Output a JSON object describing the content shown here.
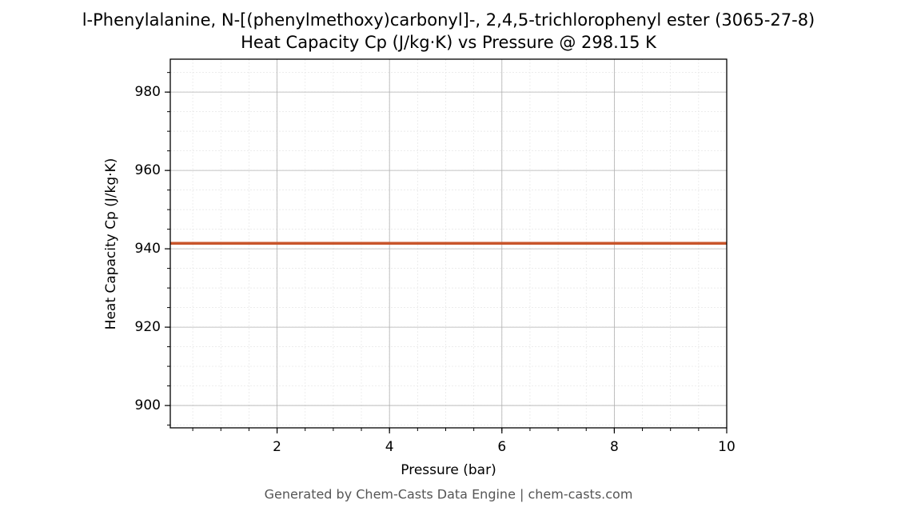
{
  "chart_data": {
    "type": "line",
    "title": "l-Phenylalanine, N-[(phenylmethoxy)carbonyl]-, 2,4,5-trichlorophenyl ester (3065-27-8)",
    "subtitle": "Heat Capacity Cp (J/kg·K) vs Pressure @ 298.15 K",
    "x_label": "Pressure (bar)",
    "y_label": "Heat Capacity Cp (J/kg·K)",
    "footer": "Generated by Chem-Casts Data Engine | chem-casts.com",
    "x": [
      0.1,
      10
    ],
    "series": [
      {
        "name": "Cp",
        "color": "#c8552b",
        "values": [
          941.4,
          941.4
        ]
      }
    ],
    "xlim": [
      0.1,
      10
    ],
    "xticks": [
      2,
      4,
      6,
      8,
      10
    ],
    "ylim": [
      894.3,
      988.4
    ],
    "yticks": [
      900,
      920,
      940,
      960,
      980
    ],
    "grid": true
  }
}
